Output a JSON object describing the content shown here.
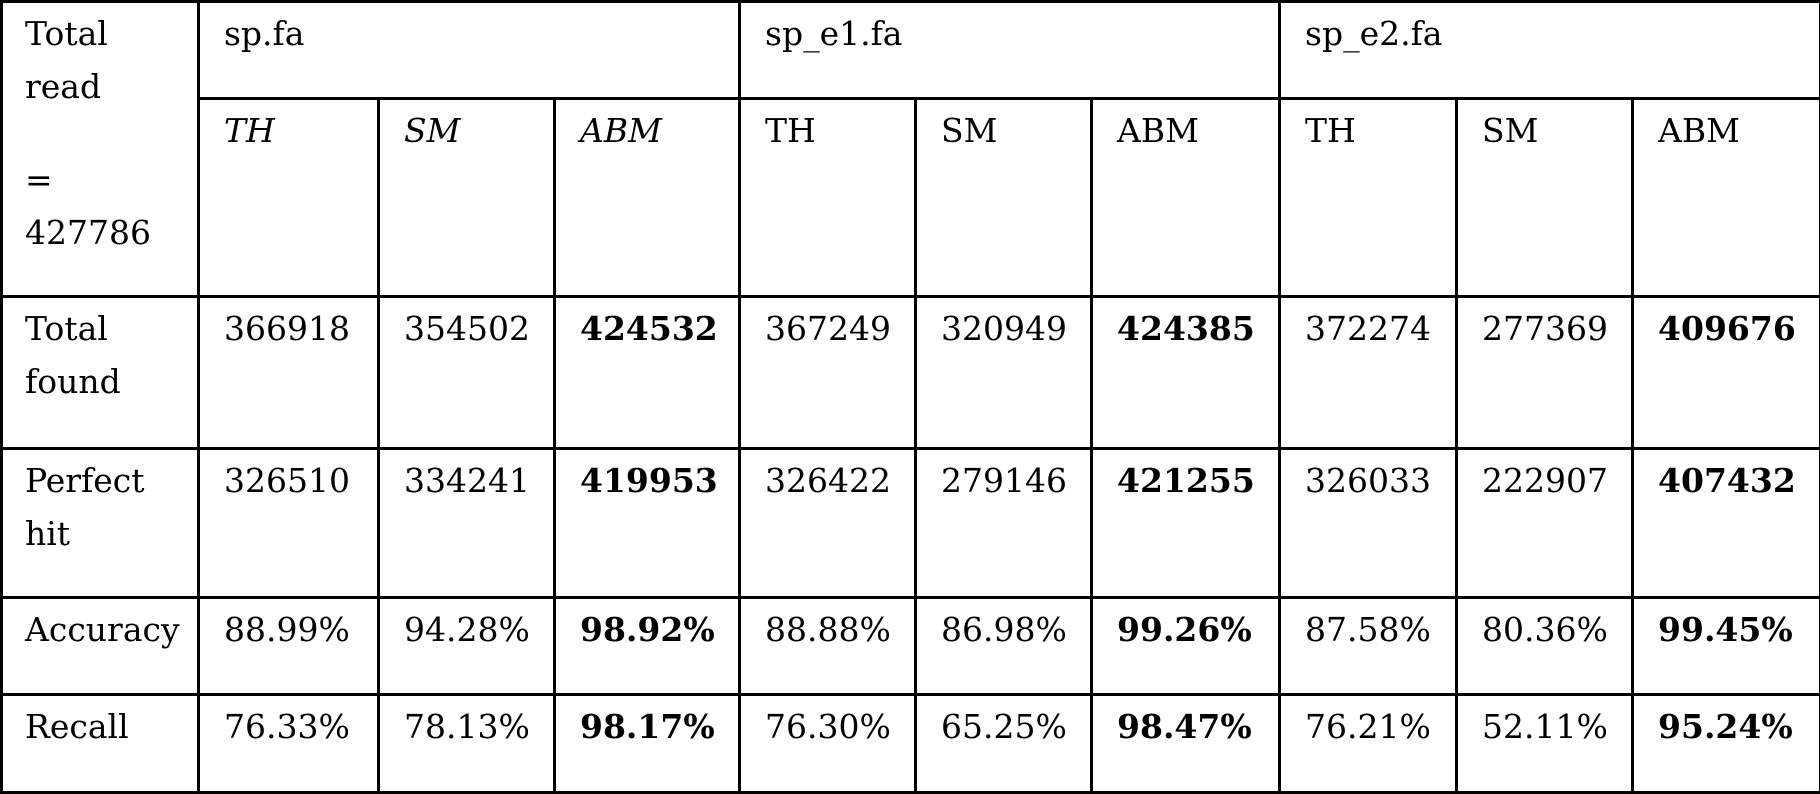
{
  "corner": {
    "line1": "Total read",
    "line2": "=",
    "line3": "427786"
  },
  "files": [
    "sp.fa",
    "sp_e1.fa",
    "sp_e2.fa"
  ],
  "methods": [
    [
      "TH",
      "SM",
      "ABM"
    ],
    [
      "TH",
      "SM",
      "ABM"
    ],
    [
      "TH",
      "SM",
      "ABM"
    ]
  ],
  "rows": [
    {
      "label": "Total found",
      "values": [
        "366918",
        "354502",
        "424532",
        "367249",
        "320949",
        "424385",
        "372274",
        "277369",
        "409676"
      ]
    },
    {
      "label": "Perfect hit",
      "values": [
        "326510",
        "334241",
        "419953",
        "326422",
        "279146",
        "421255",
        "326033",
        "222907",
        "407432"
      ]
    },
    {
      "label": "Accuracy",
      "values": [
        "88.99%",
        "94.28%",
        "98.92%",
        "88.88%",
        "86.98%",
        "99.26%",
        "87.58%",
        "80.36%",
        "99.45%"
      ]
    },
    {
      "label": "Recall",
      "values": [
        "76.33%",
        "78.13%",
        "98.17%",
        "76.30%",
        "65.25%",
        "98.47%",
        "76.21%",
        "52.11%",
        "95.24%"
      ]
    }
  ]
}
